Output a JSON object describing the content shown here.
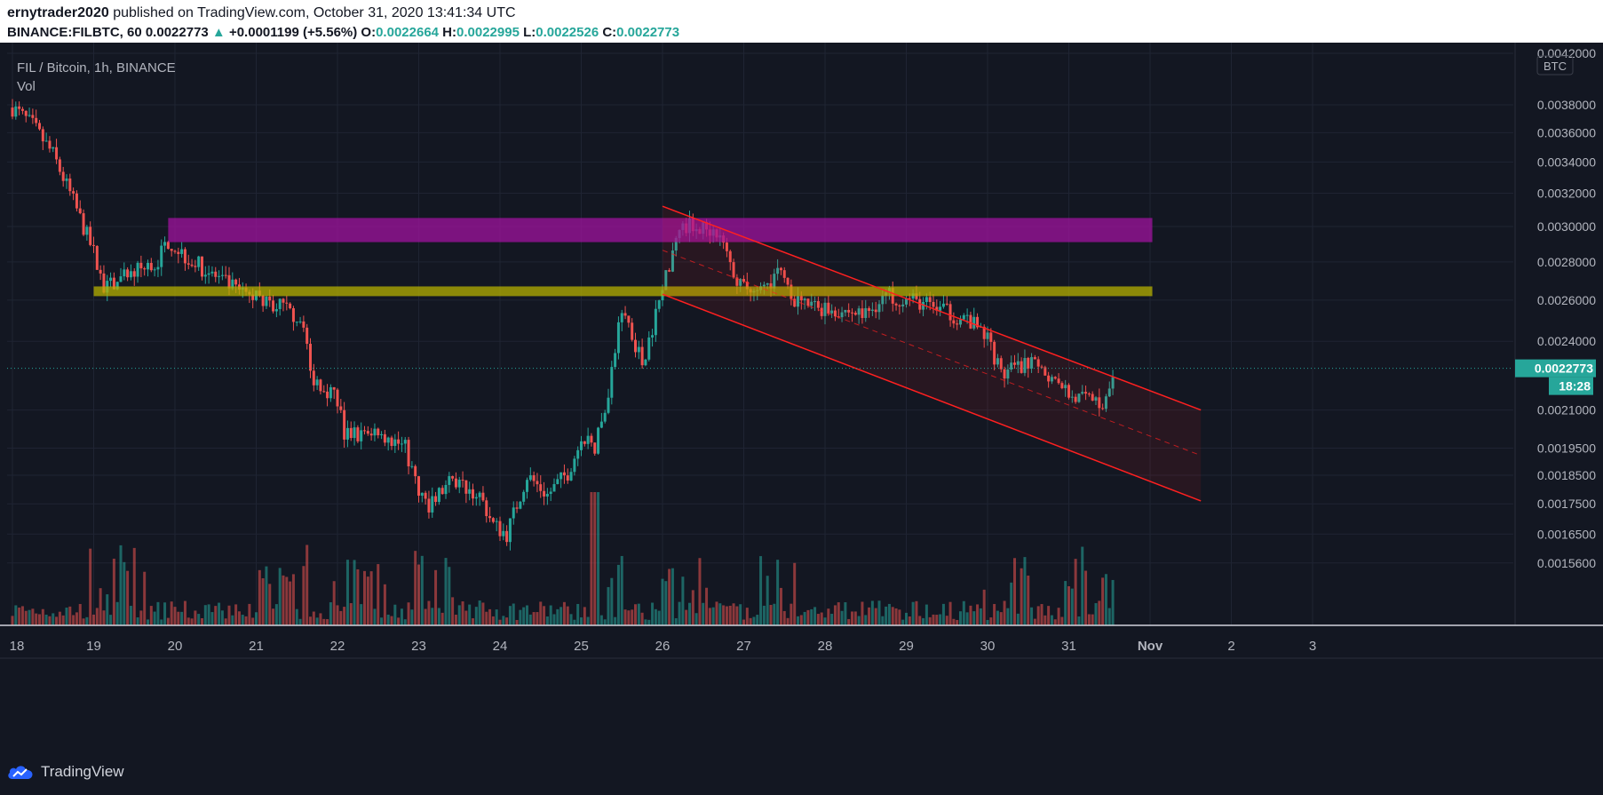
{
  "header": {
    "author": "ernytrader2020",
    "published_text": "published on TradingView.com, October 31, 2020 13:41:34 UTC",
    "symbol": "BINANCE:FILBTC, 60",
    "last": "0.0022773",
    "change": "+0.0001199 (+5.56%)",
    "o_label": "O:",
    "o_value": "0.0022664",
    "h_label": "H:",
    "h_value": "0.0022995",
    "l_label": "L:",
    "l_value": "0.0022526",
    "c_label": "C:",
    "c_value": "0.0022773"
  },
  "legend": {
    "title": "FIL / Bitcoin, 1h, BINANCE",
    "vol": "Vol"
  },
  "footer": {
    "brand": "TradingView"
  },
  "colors": {
    "background": "#131722",
    "up": "#26a69a",
    "down": "#ef5350",
    "zone_purple": "#a0139f",
    "zone_yellow": "#b5b000",
    "channel": "#ff2020",
    "text": "#b2b5be"
  },
  "chart_data": {
    "type": "candlestick",
    "price_axis": {
      "currency_label": "BTC",
      "ticks": [
        "0.0042000",
        "0.0038000",
        "0.0036000",
        "0.0034000",
        "0.0032000",
        "0.0030000",
        "0.0028000",
        "0.0026000",
        "0.0024000",
        "0.0021000",
        "0.0019500",
        "0.0018500",
        "0.0017500",
        "0.0016500",
        "0.0015600"
      ],
      "current_price": "0.0022773",
      "countdown": "18:28",
      "scale": "log"
    },
    "time_axis": {
      "ticks": [
        "18",
        "19",
        "20",
        "21",
        "22",
        "23",
        "24",
        "25",
        "26",
        "27",
        "28",
        "29",
        "30",
        "31",
        "Nov",
        "2",
        "3"
      ]
    },
    "price_path": [
      [
        "18 00:00",
        0.00378
      ],
      [
        "18 06:00",
        0.00365
      ],
      [
        "18 12:00",
        0.00345
      ],
      [
        "18 18:00",
        0.00315
      ],
      [
        "19 00:00",
        0.00285
      ],
      [
        "19 03:00",
        0.00265
      ],
      [
        "19 12:00",
        0.00275
      ],
      [
        "19 18:00",
        0.00278
      ],
      [
        "19 22:00",
        0.00292
      ],
      [
        "20 04:00",
        0.00282
      ],
      [
        "20 12:00",
        0.00272
      ],
      [
        "20 20:00",
        0.00263
      ],
      [
        "21 06:00",
        0.00258
      ],
      [
        "21 14:00",
        0.0025
      ],
      [
        "21 16:00",
        0.00225
      ],
      [
        "22 00:00",
        0.00215
      ],
      [
        "22 02:00",
        0.002
      ],
      [
        "22 12:00",
        0.00202
      ],
      [
        "22 20:00",
        0.00195
      ],
      [
        "23 00:00",
        0.00179
      ],
      [
        "23 03:00",
        0.00175
      ],
      [
        "23 10:00",
        0.00183
      ],
      [
        "23 18:00",
        0.00178
      ],
      [
        "23 22:00",
        0.00168
      ],
      [
        "24 02:00",
        0.00165
      ],
      [
        "24 08:00",
        0.00185
      ],
      [
        "24 14:00",
        0.00178
      ],
      [
        "24 20:00",
        0.00186
      ],
      [
        "25 00:00",
        0.00198
      ],
      [
        "25 04:00",
        0.00195
      ],
      [
        "25 08:00",
        0.00215
      ],
      [
        "25 12:00",
        0.00258
      ],
      [
        "25 18:00",
        0.0023
      ],
      [
        "26 00:00",
        0.00265
      ],
      [
        "26 04:00",
        0.00295
      ],
      [
        "26 08:00",
        0.003
      ],
      [
        "26 16:00",
        0.00298
      ],
      [
        "26 22:00",
        0.0027
      ],
      [
        "27 04:00",
        0.00262
      ],
      [
        "27 10:00",
        0.00275
      ],
      [
        "27 16:00",
        0.00258
      ],
      [
        "28 00:00",
        0.00256
      ],
      [
        "28 12:00",
        0.00253
      ],
      [
        "28 18:00",
        0.00263
      ],
      [
        "29 06:00",
        0.00258
      ],
      [
        "29 18:00",
        0.0025
      ],
      [
        "30 00:00",
        0.00242
      ],
      [
        "30 04:00",
        0.00225
      ],
      [
        "30 12:00",
        0.0023
      ],
      [
        "30 20:00",
        0.00222
      ],
      [
        "31 02:00",
        0.00215
      ],
      [
        "31 10:00",
        0.00213
      ],
      [
        "31 13:00",
        0.0022773
      ]
    ],
    "volume_peaks_day": [
      "19",
      "21",
      "22",
      "23",
      "25",
      "26",
      "27",
      "30",
      "31"
    ],
    "drawings": [
      {
        "kind": "rectangle",
        "color": "purple",
        "from": "19 22:00",
        "to": "Nov 00:40",
        "price_low": 0.00291,
        "price_high": 0.00305
      },
      {
        "kind": "rectangle",
        "color": "yellow",
        "from": "19 00:00",
        "to": "Nov 00:40",
        "price_low": 0.00262,
        "price_high": 0.00267
      },
      {
        "kind": "parallel_channel",
        "color": "red",
        "from": "26 00:00",
        "to": "Nov 15:00",
        "upper_start": 0.00312,
        "upper_end": 0.0021,
        "lower_start": 0.00263,
        "lower_end": 0.00176
      }
    ]
  }
}
